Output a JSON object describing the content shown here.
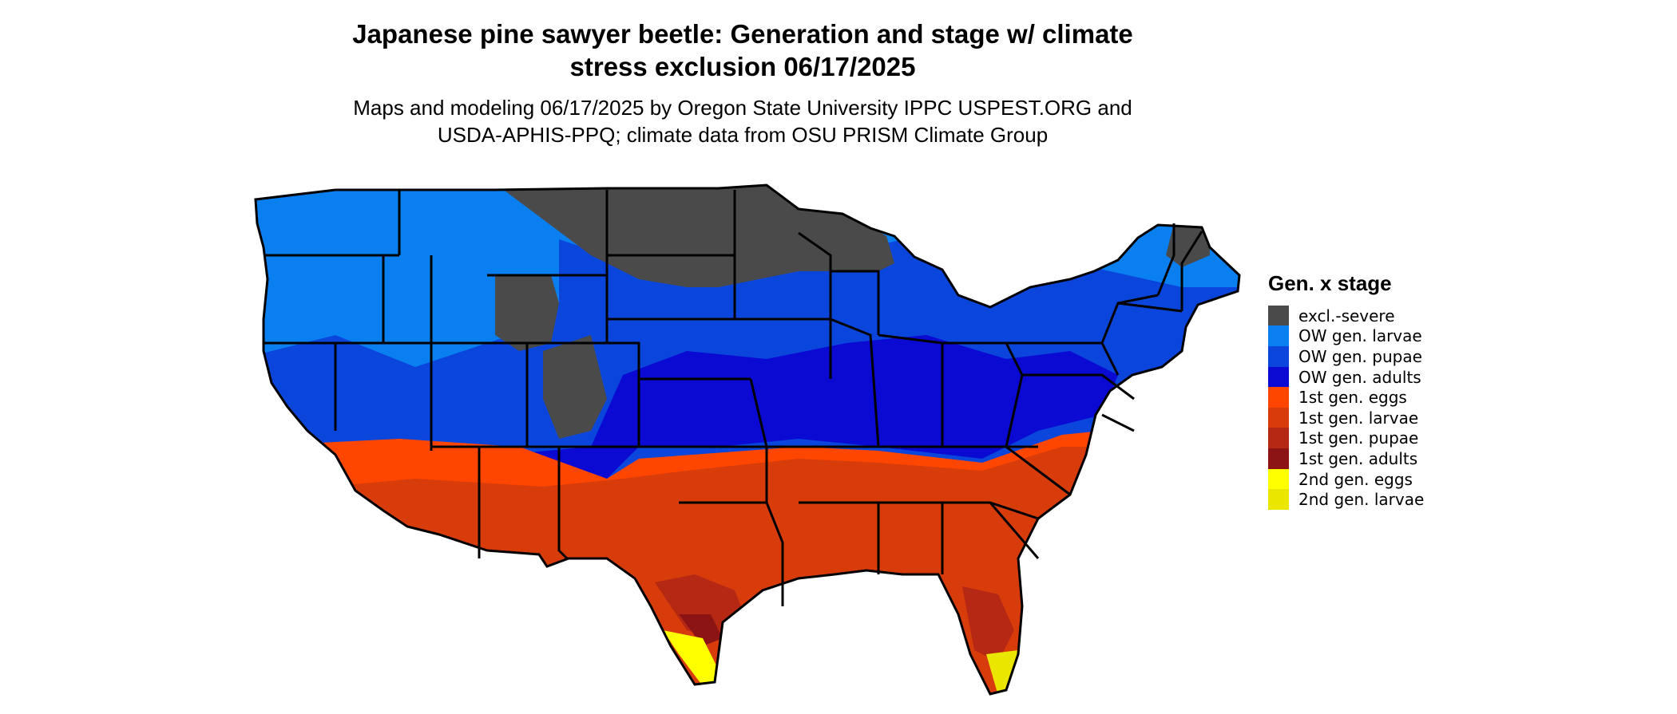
{
  "title_line1": "Japanese pine sawyer beetle: Generation and stage w/ climate",
  "title_line2": "stress exclusion 06/17/2025",
  "subtitle_line1": "Maps and modeling 06/17/2025 by Oregon State University IPPC USPEST.ORG and",
  "subtitle_line2": "USDA-APHIS-PPQ; climate data from OSU PRISM Climate Group",
  "legend": {
    "title": "Gen. x stage",
    "items": [
      {
        "label": "excl.-severe",
        "color": "#4a4a4a"
      },
      {
        "label": "OW gen. larvae",
        "color": "#0a7ff0"
      },
      {
        "label": "OW gen. pupae",
        "color": "#0a46dc"
      },
      {
        "label": "OW gen. adults",
        "color": "#0a0ad2"
      },
      {
        "label": "1st gen. eggs",
        "color": "#ff4600"
      },
      {
        "label": "1st gen. larvae",
        "color": "#d73c0a"
      },
      {
        "label": "1st gen. pupae",
        "color": "#b42814"
      },
      {
        "label": "1st gen. adults",
        "color": "#8c1414"
      },
      {
        "label": "2nd gen. eggs",
        "color": "#ffff00"
      },
      {
        "label": "2nd gen. larvae",
        "color": "#ebe600"
      }
    ]
  }
}
